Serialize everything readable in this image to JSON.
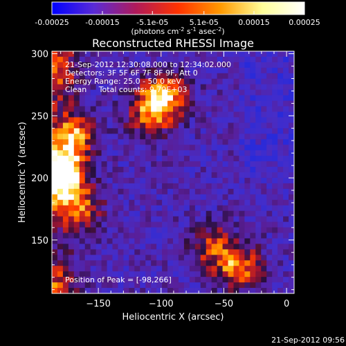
{
  "colorbar": {
    "min": -0.00025,
    "max": 0.00025,
    "tick_labels": [
      "-0.00025",
      "-0.00015",
      "-5.1e-05",
      "5.1e-05",
      "0.00015",
      "0.00025"
    ],
    "tick_values": [
      -0.00025,
      -0.00015,
      -5.1e-05,
      5.1e-05,
      0.00015,
      0.00025
    ],
    "units_label_parts": [
      "(photons cm",
      "-2",
      " s",
      "-1",
      " asec",
      "-2",
      ")"
    ],
    "colormap_stops": [
      "#0000ff",
      "#5a2bd6",
      "#b01a5a",
      "#ff3300",
      "#ff9900",
      "#ffff99",
      "#ffffff"
    ]
  },
  "chart_data": {
    "type": "heatmap",
    "title": "Reconstructed RHESSI Image",
    "xlabel": "Heliocentric X (arcsec)",
    "ylabel": "Heliocentric Y (arcsec)",
    "xlim": [
      -187,
      6
    ],
    "ylim": [
      107,
      302
    ],
    "x_ticks": [
      -150,
      -100,
      -50,
      0
    ],
    "x_tick_labels": [
      "−150",
      "−100",
      "−50",
      "0"
    ],
    "y_ticks": [
      150,
      200,
      250,
      300
    ],
    "y_tick_labels": [
      "150",
      "200",
      "250",
      "300"
    ],
    "annotations": [
      "21-Sep-2012 12:30:08.000 to 12:34:02.000",
      "Detectors: 3F 5F 6F 7F 8F 9F, Att 0",
      "Energy Range: 25.0 - 50.0 keV",
      "Clean     Total counts: 9.79E+03"
    ],
    "peak_label": "Position of Peak = [-98,266]",
    "bright_regions": [
      {
        "x": -178,
        "y": 205,
        "level": 0.95
      },
      {
        "x": -170,
        "y": 235,
        "level": 0.8
      },
      {
        "x": -165,
        "y": 175,
        "level": 0.7
      },
      {
        "x": -98,
        "y": 266,
        "level": 1.0
      },
      {
        "x": -110,
        "y": 250,
        "level": 0.6
      },
      {
        "x": -38,
        "y": 128,
        "level": 0.8
      },
      {
        "x": -60,
        "y": 145,
        "level": 0.55
      }
    ]
  },
  "footer": {
    "timestamp": "21-Sep-2012 09:56"
  }
}
